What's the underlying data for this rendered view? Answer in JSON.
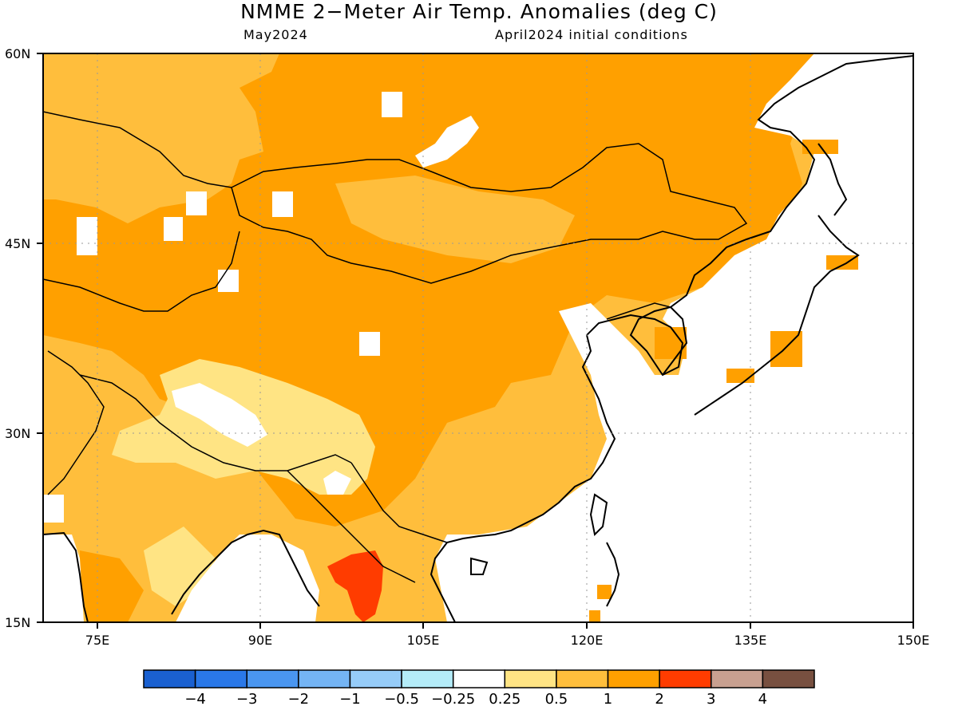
{
  "title": "NMME 2−Meter Air Temp. Anomalies (deg C)",
  "valid_month": "May2024",
  "initial_conditions": "April2024 initial conditions",
  "lat_labels": [
    "60N",
    "45N",
    "30N",
    "15N"
  ],
  "lon_labels": [
    "75E",
    "90E",
    "105E",
    "120E",
    "135E",
    "150E"
  ],
  "colorbar": {
    "colors": [
      "#1a60d0",
      "#2a78e8",
      "#4a96f0",
      "#74b4f4",
      "#96ccf8",
      "#b4ecf8",
      "#ffffff",
      "#ffe484",
      "#ffbe3c",
      "#ffa000",
      "#ff3c00",
      "#c8a090",
      "#785040"
    ],
    "labels": [
      "−4",
      "−3",
      "−2",
      "−1",
      "−0.5",
      "−0.25",
      "0.25",
      "0.5",
      "1",
      "2",
      "3",
      "4"
    ]
  }
}
